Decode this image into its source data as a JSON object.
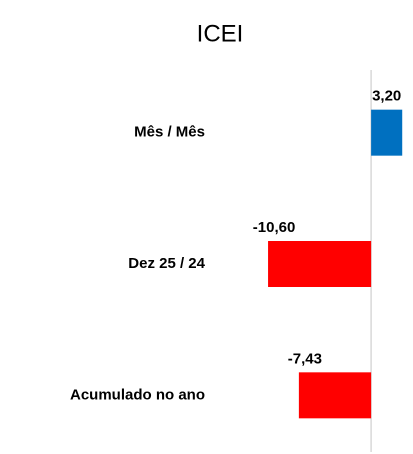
{
  "chart_data": {
    "type": "hbar",
    "title": "ICEI",
    "categories": [
      "Mês / Mês",
      "Dez 25 / 24",
      "Acumulado no ano"
    ],
    "values": [
      3.2,
      -10.6,
      -7.43
    ],
    "value_labels": [
      "3,20",
      "-10,60",
      "-7,43"
    ],
    "colors": [
      "#0070c0",
      "#ff0000",
      "#ff0000"
    ],
    "xlim": [
      -14,
      4
    ]
  }
}
